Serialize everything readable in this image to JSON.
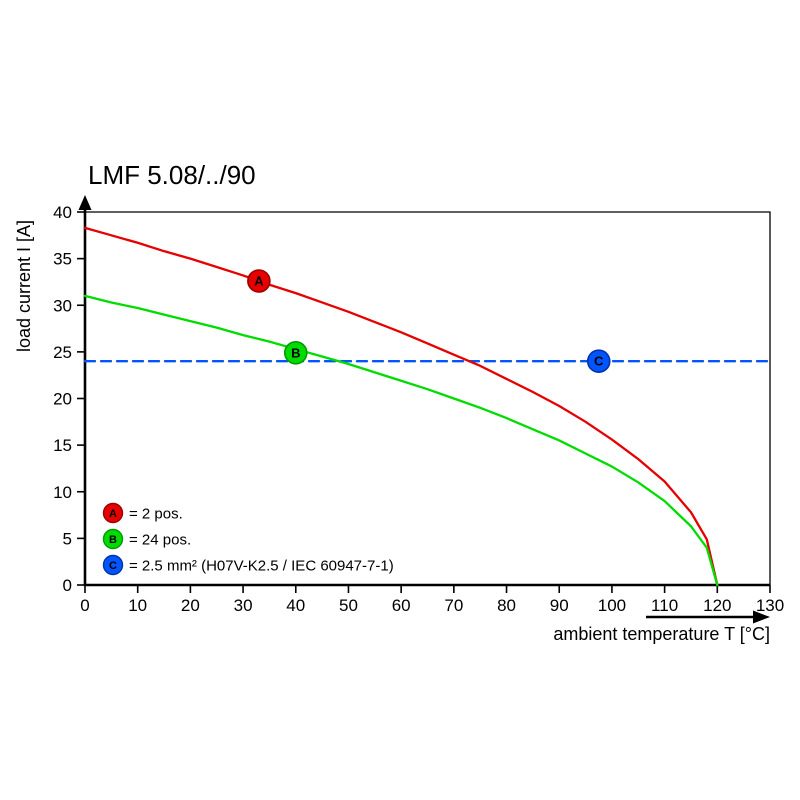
{
  "chart_data": {
    "type": "line",
    "title": "LMF 5.08/../90",
    "xlabel": "ambient temperature T [°C]",
    "ylabel": "load current I [A]",
    "xlim": [
      0,
      130
    ],
    "ylim": [
      0,
      40
    ],
    "xticks": [
      0,
      10,
      20,
      30,
      40,
      50,
      60,
      70,
      80,
      90,
      100,
      110,
      120,
      130
    ],
    "yticks": [
      0,
      5,
      10,
      15,
      20,
      25,
      30,
      35,
      40
    ],
    "grid": false,
    "legend_position": "bottom-left-inside",
    "series": [
      {
        "name": "A",
        "label": "= 2 pos.",
        "color": "#e60000",
        "style": "solid",
        "points": [
          [
            0,
            38.3
          ],
          [
            5,
            37.5
          ],
          [
            10,
            36.7
          ],
          [
            15,
            35.8
          ],
          [
            20,
            35.0
          ],
          [
            25,
            34.1
          ],
          [
            30,
            33.2
          ],
          [
            35,
            32.2
          ],
          [
            40,
            31.3
          ],
          [
            45,
            30.3
          ],
          [
            50,
            29.3
          ],
          [
            55,
            28.2
          ],
          [
            60,
            27.1
          ],
          [
            65,
            25.9
          ],
          [
            70,
            24.7
          ],
          [
            75,
            23.5
          ],
          [
            80,
            22.1
          ],
          [
            85,
            20.7
          ],
          [
            90,
            19.2
          ],
          [
            95,
            17.5
          ],
          [
            100,
            15.6
          ],
          [
            105,
            13.5
          ],
          [
            110,
            11.1
          ],
          [
            115,
            7.8
          ],
          [
            118,
            4.9
          ],
          [
            120,
            0
          ]
        ]
      },
      {
        "name": "B",
        "label": "= 24 pos.",
        "color": "#00dc00",
        "style": "solid",
        "points": [
          [
            0,
            31.0
          ],
          [
            5,
            30.3
          ],
          [
            10,
            29.7
          ],
          [
            15,
            29.0
          ],
          [
            20,
            28.3
          ],
          [
            25,
            27.6
          ],
          [
            30,
            26.8
          ],
          [
            35,
            26.1
          ],
          [
            40,
            25.3
          ],
          [
            45,
            24.5
          ],
          [
            50,
            23.7
          ],
          [
            55,
            22.8
          ],
          [
            60,
            21.9
          ],
          [
            65,
            21.0
          ],
          [
            70,
            20.0
          ],
          [
            75,
            19.0
          ],
          [
            80,
            17.9
          ],
          [
            85,
            16.7
          ],
          [
            90,
            15.5
          ],
          [
            95,
            14.1
          ],
          [
            100,
            12.7
          ],
          [
            105,
            11.0
          ],
          [
            110,
            9.0
          ],
          [
            115,
            6.3
          ],
          [
            118,
            4.0
          ],
          [
            120,
            0
          ]
        ]
      },
      {
        "name": "C",
        "label": "= 2.5 mm² (H07V-K2.5 / IEC 60947-7-1)",
        "color": "#0055ff",
        "style": "dashed",
        "points": [
          [
            0,
            24
          ],
          [
            130,
            24
          ]
        ]
      }
    ],
    "markers": [
      {
        "name": "A",
        "x": 33,
        "y": 32.6,
        "fill": "#e60000",
        "ring": "#9b0000",
        "letter": "A",
        "letter_color": "#ffffff"
      },
      {
        "name": "B",
        "x": 40,
        "y": 24.9,
        "fill": "#00dc00",
        "ring": "#009b00",
        "letter": "B",
        "letter_color": "#003300"
      },
      {
        "name": "C",
        "x": 97.5,
        "y": 24,
        "fill": "#0055ff",
        "ring": "#0033aa",
        "letter": "C",
        "letter_color": "#ffffff"
      }
    ],
    "legend": [
      {
        "name": "A",
        "fill": "#e60000",
        "ring": "#9b0000",
        "letter": "A",
        "letter_color": "#ffffff",
        "text": "= 2 pos."
      },
      {
        "name": "B",
        "fill": "#00dc00",
        "ring": "#009b00",
        "letter": "B",
        "letter_color": "#003300",
        "text": "= 24 pos."
      },
      {
        "name": "C",
        "fill": "#0055ff",
        "ring": "#0033aa",
        "letter": "C",
        "letter_color": "#ffffff",
        "text": "= 2.5 mm² (H07V-K2.5 / IEC 60947-7-1)"
      }
    ]
  }
}
